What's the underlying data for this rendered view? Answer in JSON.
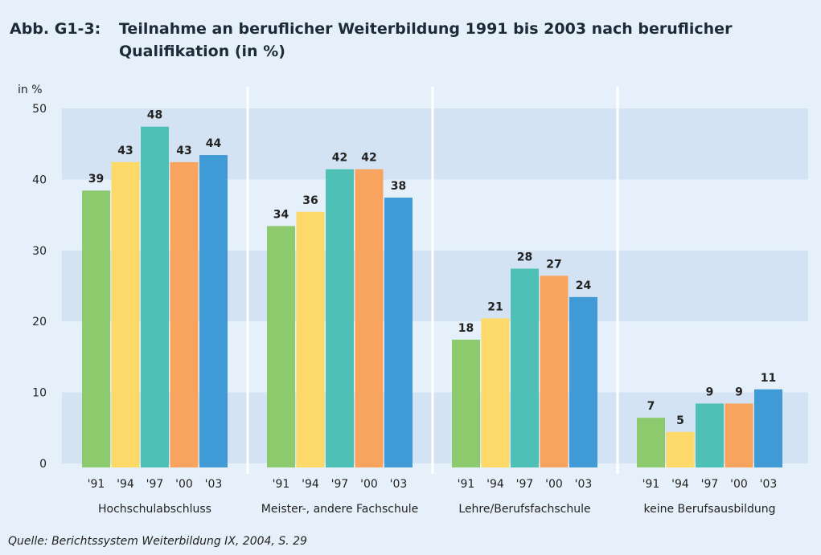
{
  "chart_data": {
    "type": "bar",
    "figure_label": "Abb. G1-3:",
    "title": "Teilnahme an beruflicher Weiterbildung 1991 bis 2003 nach beruflicher Qualifikation (in %)",
    "y_axis_label": "in %",
    "source": "Quelle: Berichtssystem Weiterbildung IX, 2004, S. 29",
    "categories": [
      "Hochschulabschluss",
      "Meister-, andere Fachschule",
      "Lehre/Berufsfachschule",
      "keine Berufsausbildung"
    ],
    "series": [
      {
        "name": "'91",
        "color": "#8dc96d",
        "values": [
          39,
          34,
          18,
          7
        ]
      },
      {
        "name": "'94",
        "color": "#fdd96a",
        "values": [
          43,
          36,
          21,
          5
        ]
      },
      {
        "name": "'97",
        "color": "#4fc0b5",
        "values": [
          48,
          42,
          28,
          9
        ]
      },
      {
        "name": "'00",
        "color": "#f8a35e",
        "values": [
          43,
          42,
          27,
          9
        ]
      },
      {
        "name": "'03",
        "color": "#3f9ad6",
        "values": [
          44,
          38,
          24,
          11
        ]
      }
    ],
    "ylim": [
      0,
      50
    ],
    "yticks": [
      0,
      10,
      20,
      30,
      40,
      50
    ],
    "grid": true
  }
}
